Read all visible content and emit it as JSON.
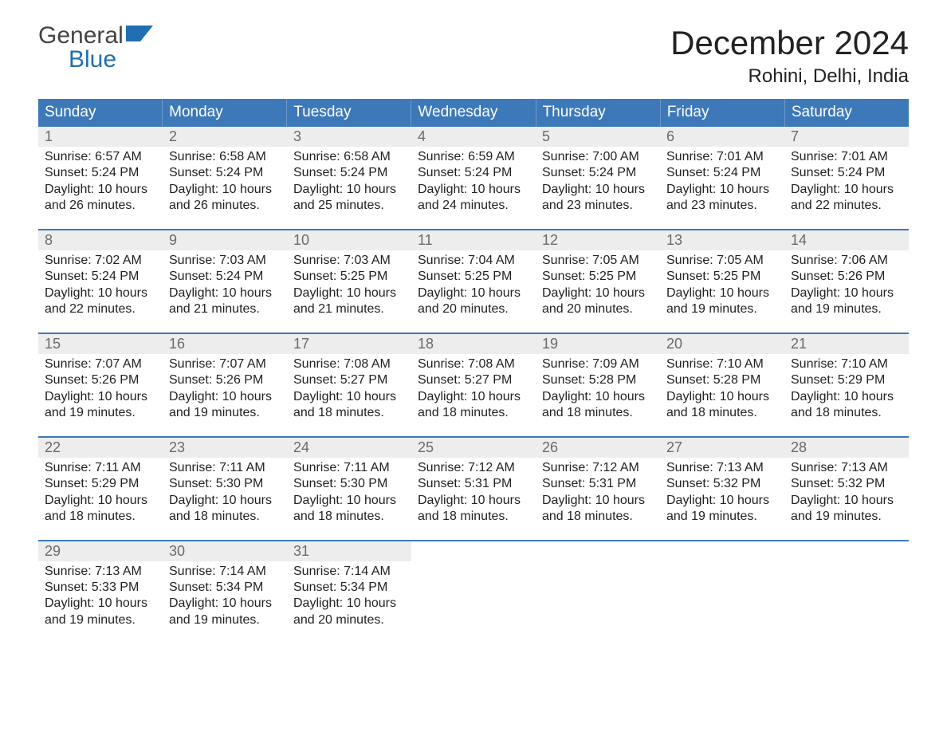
{
  "colors": {
    "header_bg": "#3d79b8",
    "week_border": "#3d79b8",
    "daynum_bg": "#ededed",
    "daynum_color": "#6a6a6a",
    "text": "#222222",
    "logo_gray": "#444444",
    "logo_blue": "#1f6fb2",
    "background": "#ffffff"
  },
  "logo": {
    "line1": "General",
    "line2": "Blue"
  },
  "title": "December 2024",
  "location": "Rohini, Delhi, India",
  "day_headers": [
    "Sunday",
    "Monday",
    "Tuesday",
    "Wednesday",
    "Thursday",
    "Friday",
    "Saturday"
  ],
  "labels": {
    "sunrise": "Sunrise:",
    "sunset": "Sunset:",
    "daylight": "Daylight:"
  },
  "weeks": [
    [
      {
        "n": "1",
        "sunrise": "6:57 AM",
        "sunset": "5:24 PM",
        "daylight": "10 hours and 26 minutes."
      },
      {
        "n": "2",
        "sunrise": "6:58 AM",
        "sunset": "5:24 PM",
        "daylight": "10 hours and 26 minutes."
      },
      {
        "n": "3",
        "sunrise": "6:58 AM",
        "sunset": "5:24 PM",
        "daylight": "10 hours and 25 minutes."
      },
      {
        "n": "4",
        "sunrise": "6:59 AM",
        "sunset": "5:24 PM",
        "daylight": "10 hours and 24 minutes."
      },
      {
        "n": "5",
        "sunrise": "7:00 AM",
        "sunset": "5:24 PM",
        "daylight": "10 hours and 23 minutes."
      },
      {
        "n": "6",
        "sunrise": "7:01 AM",
        "sunset": "5:24 PM",
        "daylight": "10 hours and 23 minutes."
      },
      {
        "n": "7",
        "sunrise": "7:01 AM",
        "sunset": "5:24 PM",
        "daylight": "10 hours and 22 minutes."
      }
    ],
    [
      {
        "n": "8",
        "sunrise": "7:02 AM",
        "sunset": "5:24 PM",
        "daylight": "10 hours and 22 minutes."
      },
      {
        "n": "9",
        "sunrise": "7:03 AM",
        "sunset": "5:24 PM",
        "daylight": "10 hours and 21 minutes."
      },
      {
        "n": "10",
        "sunrise": "7:03 AM",
        "sunset": "5:25 PM",
        "daylight": "10 hours and 21 minutes."
      },
      {
        "n": "11",
        "sunrise": "7:04 AM",
        "sunset": "5:25 PM",
        "daylight": "10 hours and 20 minutes."
      },
      {
        "n": "12",
        "sunrise": "7:05 AM",
        "sunset": "5:25 PM",
        "daylight": "10 hours and 20 minutes."
      },
      {
        "n": "13",
        "sunrise": "7:05 AM",
        "sunset": "5:25 PM",
        "daylight": "10 hours and 19 minutes."
      },
      {
        "n": "14",
        "sunrise": "7:06 AM",
        "sunset": "5:26 PM",
        "daylight": "10 hours and 19 minutes."
      }
    ],
    [
      {
        "n": "15",
        "sunrise": "7:07 AM",
        "sunset": "5:26 PM",
        "daylight": "10 hours and 19 minutes."
      },
      {
        "n": "16",
        "sunrise": "7:07 AM",
        "sunset": "5:26 PM",
        "daylight": "10 hours and 19 minutes."
      },
      {
        "n": "17",
        "sunrise": "7:08 AM",
        "sunset": "5:27 PM",
        "daylight": "10 hours and 18 minutes."
      },
      {
        "n": "18",
        "sunrise": "7:08 AM",
        "sunset": "5:27 PM",
        "daylight": "10 hours and 18 minutes."
      },
      {
        "n": "19",
        "sunrise": "7:09 AM",
        "sunset": "5:28 PM",
        "daylight": "10 hours and 18 minutes."
      },
      {
        "n": "20",
        "sunrise": "7:10 AM",
        "sunset": "5:28 PM",
        "daylight": "10 hours and 18 minutes."
      },
      {
        "n": "21",
        "sunrise": "7:10 AM",
        "sunset": "5:29 PM",
        "daylight": "10 hours and 18 minutes."
      }
    ],
    [
      {
        "n": "22",
        "sunrise": "7:11 AM",
        "sunset": "5:29 PM",
        "daylight": "10 hours and 18 minutes."
      },
      {
        "n": "23",
        "sunrise": "7:11 AM",
        "sunset": "5:30 PM",
        "daylight": "10 hours and 18 minutes."
      },
      {
        "n": "24",
        "sunrise": "7:11 AM",
        "sunset": "5:30 PM",
        "daylight": "10 hours and 18 minutes."
      },
      {
        "n": "25",
        "sunrise": "7:12 AM",
        "sunset": "5:31 PM",
        "daylight": "10 hours and 18 minutes."
      },
      {
        "n": "26",
        "sunrise": "7:12 AM",
        "sunset": "5:31 PM",
        "daylight": "10 hours and 18 minutes."
      },
      {
        "n": "27",
        "sunrise": "7:13 AM",
        "sunset": "5:32 PM",
        "daylight": "10 hours and 19 minutes."
      },
      {
        "n": "28",
        "sunrise": "7:13 AM",
        "sunset": "5:32 PM",
        "daylight": "10 hours and 19 minutes."
      }
    ],
    [
      {
        "n": "29",
        "sunrise": "7:13 AM",
        "sunset": "5:33 PM",
        "daylight": "10 hours and 19 minutes."
      },
      {
        "n": "30",
        "sunrise": "7:14 AM",
        "sunset": "5:34 PM",
        "daylight": "10 hours and 19 minutes."
      },
      {
        "n": "31",
        "sunrise": "7:14 AM",
        "sunset": "5:34 PM",
        "daylight": "10 hours and 20 minutes."
      },
      null,
      null,
      null,
      null
    ]
  ]
}
